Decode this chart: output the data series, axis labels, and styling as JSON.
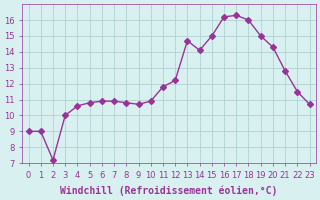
{
  "x": [
    0,
    1,
    2,
    3,
    4,
    5,
    6,
    7,
    8,
    9,
    10,
    11,
    12,
    13,
    14,
    15,
    16,
    17,
    18,
    19,
    20,
    21,
    22,
    23
  ],
  "y": [
    9.0,
    9.0,
    7.2,
    10.0,
    10.6,
    10.8,
    10.9,
    10.9,
    10.8,
    10.7,
    10.9,
    11.8,
    12.2,
    14.7,
    14.1,
    15.0,
    16.2,
    16.3,
    16.0,
    15.0,
    14.3,
    12.8,
    11.5,
    10.7
  ],
  "line_color": "#993399",
  "marker": "D",
  "marker_size": 3,
  "bg_color": "#d8f0f0",
  "grid_color": "#aacccc",
  "xlabel": "Windchill (Refroidissement éolien,°C)",
  "xlabel_color": "#993399",
  "tick_color": "#993399",
  "xlim": [
    -0.5,
    23.5
  ],
  "ylim": [
    7,
    17
  ],
  "yticks": [
    7,
    8,
    9,
    10,
    11,
    12,
    13,
    14,
    15,
    16
  ],
  "xticks": [
    0,
    1,
    2,
    3,
    4,
    5,
    6,
    7,
    8,
    9,
    10,
    11,
    12,
    13,
    14,
    15,
    16,
    17,
    18,
    19,
    20,
    21,
    22,
    23
  ],
  "tick_fontsize": 6,
  "xlabel_fontsize": 7
}
